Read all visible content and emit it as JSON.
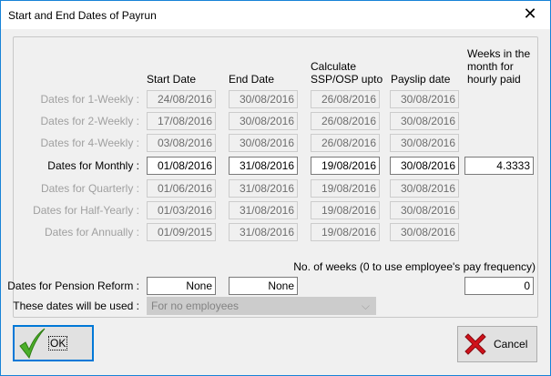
{
  "window": {
    "title": "Start and End Dates of Payrun",
    "close_icon": "close-icon"
  },
  "headers": {
    "start": "Start Date",
    "end": "End Date",
    "ssp": "Calculate SSP/OSP upto",
    "payslip": "Payslip date",
    "weeks": "Weeks in the month for hourly paid"
  },
  "rows": [
    {
      "label": "Dates for 1-Weekly :",
      "start": "24/08/2016",
      "end": "30/08/2016",
      "ssp": "26/08/2016",
      "payslip": "30/08/2016",
      "enabled": false
    },
    {
      "label": "Dates for 2-Weekly :",
      "start": "17/08/2016",
      "end": "30/08/2016",
      "ssp": "26/08/2016",
      "payslip": "30/08/2016",
      "enabled": false
    },
    {
      "label": "Dates for 4-Weekly :",
      "start": "03/08/2016",
      "end": "30/08/2016",
      "ssp": "26/08/2016",
      "payslip": "30/08/2016",
      "enabled": false
    },
    {
      "label": "Dates for Monthly :",
      "start": "01/08/2016",
      "end": "31/08/2016",
      "ssp": "19/08/2016",
      "payslip": "30/08/2016",
      "weeks": "4.3333",
      "enabled": true
    },
    {
      "label": "Dates for Quarterly :",
      "start": "01/06/2016",
      "end": "31/08/2016",
      "ssp": "19/08/2016",
      "payslip": "30/08/2016",
      "enabled": false
    },
    {
      "label": "Dates for Half-Yearly :",
      "start": "01/03/2016",
      "end": "31/08/2016",
      "ssp": "19/08/2016",
      "payslip": "30/08/2016",
      "enabled": false
    },
    {
      "label": "Dates for Annually :",
      "start": "01/09/2015",
      "end": "31/08/2016",
      "ssp": "19/08/2016",
      "payslip": "30/08/2016",
      "enabled": false
    }
  ],
  "pension": {
    "label": "Dates for Pension Reform :",
    "start": "None",
    "end": "None",
    "weeks_label": "No. of weeks (0 to use employee's pay frequency)",
    "weeks": "0"
  },
  "usage": {
    "label": "These dates will be used :",
    "value": "For no employees"
  },
  "buttons": {
    "ok": "OK",
    "cancel": "Cancel"
  }
}
